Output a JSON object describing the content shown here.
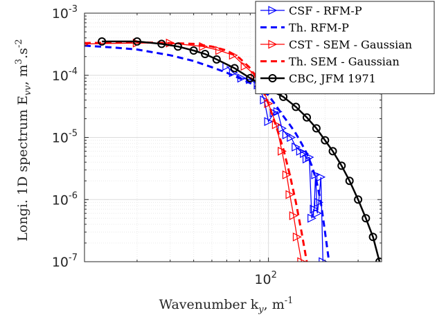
{
  "chart_data": {
    "type": "line",
    "xscale": "log",
    "yscale": "log",
    "xlim": [
      10.5,
      400
    ],
    "ylim": [
      1e-07,
      0.001
    ],
    "xticks": [
      {
        "value": 100,
        "base": "10",
        "exp": "2"
      }
    ],
    "yticks": [
      {
        "value": 0.001,
        "base": "10",
        "exp": "-3"
      },
      {
        "value": 0.0001,
        "base": "10",
        "exp": "-4"
      },
      {
        "value": 1e-05,
        "base": "10",
        "exp": "-5"
      },
      {
        "value": 1e-06,
        "base": "10",
        "exp": "-6"
      },
      {
        "value": 1e-07,
        "base": "10",
        "exp": "-7"
      }
    ],
    "xlabel": "Wavenumber k_y, m^-1",
    "ylabel": "Longi. 1D spectrum E_vv, m^3.s^-2",
    "grid": true,
    "minor_grid": true,
    "legend_position": "top-right",
    "series": [
      {
        "name": "CSF - RFM-P",
        "color": "#0000ff",
        "style": "solid",
        "marker": "triangle-right",
        "x": [
          60,
          65,
          72,
          80,
          88,
          95,
          100,
          107,
          112,
          118,
          125,
          132,
          140,
          148,
          155,
          160,
          165,
          170,
          175,
          178,
          182,
          185,
          190,
          195
        ],
        "y": [
          0.00014,
          0.00011,
          9e-05,
          8.5e-05,
          7e-05,
          4e-05,
          1.8e-05,
          2.5e-05,
          2.6e-05,
          1.4e-05,
          1.1e-05,
          1e-05,
          7e-06,
          6e-06,
          5.5e-06,
          4.5e-06,
          4.8e-06,
          5e-07,
          7e-07,
          2.5e-06,
          6e-07,
          9e-07,
          2.3e-06,
          1e-07
        ]
      },
      {
        "name": "Th. RFM-P",
        "color": "#0000ff",
        "style": "dashed",
        "marker": "none",
        "x": [
          10.5,
          15,
          20,
          30,
          40,
          50,
          60,
          70,
          80,
          90,
          100,
          110,
          120,
          130,
          140,
          150,
          160,
          170,
          180,
          190,
          200,
          210
        ],
        "y": [
          0.0003,
          0.00028,
          0.00026,
          0.00021,
          0.00017,
          0.000135,
          0.00011,
          9e-05,
          7.5e-05,
          6e-05,
          4.8e-05,
          3.2e-05,
          2.2e-05,
          1.6e-05,
          1.15e-05,
          8e-06,
          5.5e-06,
          3.5e-06,
          2e-06,
          9e-07,
          3e-07,
          1e-07
        ]
      },
      {
        "name": "CST - SEM - Gaussian",
        "color": "#ff0000",
        "style": "solid",
        "marker": "triangle-right",
        "x": [
          10.5,
          20,
          30,
          45,
          55,
          65,
          75,
          85,
          92,
          100,
          110,
          118,
          125,
          130,
          136,
          142,
          150
        ],
        "y": [
          0.00032,
          0.00033,
          0.00033,
          0.00029,
          0.00025,
          0.00021,
          0.00014,
          0.0001,
          7e-05,
          3.5e-05,
          1.6e-05,
          6e-06,
          2.5e-06,
          1.2e-06,
          5.5e-07,
          2.5e-07,
          1e-07
        ]
      },
      {
        "name": "Th. SEM - Gaussian",
        "color": "#ff0000",
        "style": "dashed",
        "marker": "none",
        "x": [
          10.5,
          20,
          30,
          40,
          50,
          60,
          70,
          80,
          90,
          100,
          110,
          120,
          130,
          140,
          150,
          160
        ],
        "y": [
          0.00033,
          0.00034,
          0.00033,
          0.00032,
          0.00029,
          0.00025,
          0.00019,
          0.00013,
          7.5e-05,
          3.5e-05,
          1.5e-05,
          6.5e-06,
          2.5e-06,
          9e-07,
          3e-07,
          1e-07
        ]
      },
      {
        "name": "CBC, JFM 1971",
        "color": "#000000",
        "style": "solid",
        "marker": "circle",
        "x": [
          13,
          20,
          27,
          33,
          40,
          46,
          53,
          66,
          80,
          100,
          120,
          140,
          160,
          180,
          200,
          220,
          245,
          270,
          300,
          330,
          360,
          390
        ],
        "y": [
          0.00035,
          0.00035,
          0.00032,
          0.00029,
          0.00025,
          0.00022,
          0.00018,
          0.00013,
          9e-05,
          6e-05,
          4.5e-05,
          3.1e-05,
          2.1e-05,
          1.4e-05,
          9e-06,
          6e-06,
          3.5e-06,
          2e-06,
          1e-06,
          5e-07,
          2.5e-07,
          1e-07
        ]
      }
    ]
  }
}
